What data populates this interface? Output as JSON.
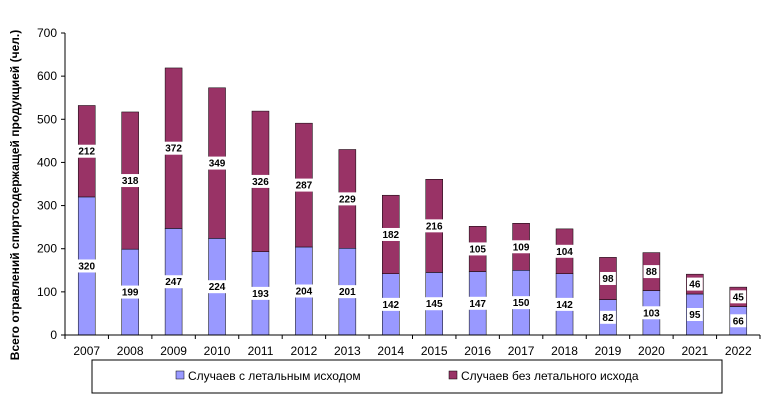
{
  "chart_data": {
    "type": "bar",
    "stacked": true,
    "categories": [
      "2007",
      "2008",
      "2009",
      "2010",
      "2011",
      "2012",
      "2013",
      "2014",
      "2015",
      "2016",
      "2017",
      "2018",
      "2019",
      "2020",
      "2021",
      "2022"
    ],
    "series": [
      {
        "name": "Случаев  с летальным исходом",
        "color": "#9999ff",
        "values": [
          320,
          199,
          247,
          224,
          193,
          204,
          201,
          142,
          145,
          147,
          150,
          142,
          82,
          103,
          95,
          66
        ]
      },
      {
        "name": "Случаев  без летального исхода",
        "color": "#993366",
        "values": [
          212,
          318,
          372,
          349,
          326,
          287,
          229,
          182,
          216,
          105,
          109,
          104,
          98,
          88,
          46,
          45
        ]
      }
    ],
    "ylabel": "Всего отравлений спиртсодержащей  продукцией (чел.)",
    "xlabel": "",
    "ylim": [
      0,
      700
    ],
    "yticks": [
      0,
      100,
      200,
      300,
      400,
      500,
      600,
      700
    ],
    "legend": "bottom",
    "grid": false
  }
}
